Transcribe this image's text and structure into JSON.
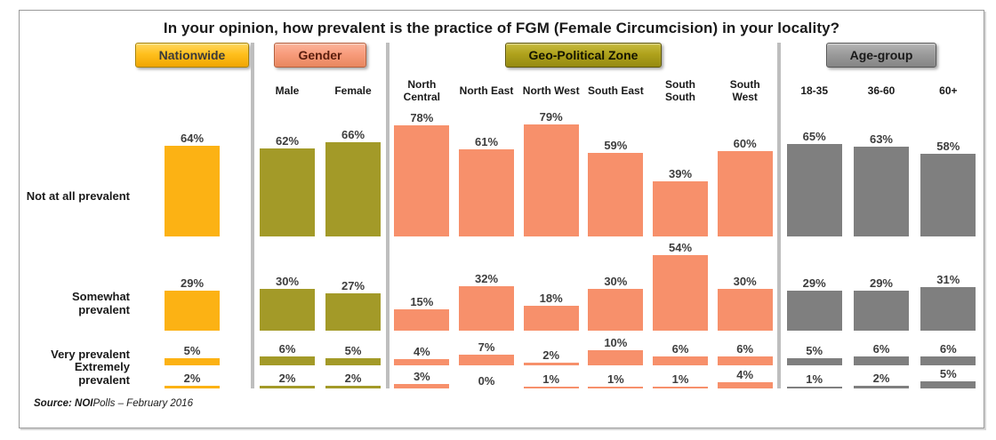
{
  "title": "In your opinion, how prevalent is the practice of FGM (Female Circumcision) in your locality?",
  "source": {
    "bold": "Source: NOI",
    "rest": "Polls – February 2016"
  },
  "chart_data": {
    "type": "bar",
    "title": "In your opinion, how prevalent is the practice of FGM (Female Circumcision) in your locality?",
    "value_suffix": "%",
    "ylim": [
      0,
      100
    ],
    "grid": false,
    "legend_position": "none",
    "categories": [
      "Not at all prevalent",
      "Somewhat prevalent",
      "Very prevalent",
      "Extremely prevalent"
    ],
    "groups": [
      {
        "name": "Nationwide",
        "bar_color": "#FCB214",
        "header_bg_top": "#FFD75E",
        "header_bg": "#FFC01E",
        "header_bg_bottom": "#F0A500",
        "header_border": "#A98200",
        "header_text_color": "#3A3A3A",
        "columns": [
          {
            "label": "",
            "values": [
              64,
              29,
              5,
              2
            ]
          }
        ]
      },
      {
        "name": "Gender",
        "bar_color": "#A39A28",
        "header_bg_top": "#FBB49B",
        "header_bg": "#F89C7C",
        "header_bg_bottom": "#E8875F",
        "header_border": "#B55F3C",
        "header_text_color": "#5A1D0D",
        "columns": [
          {
            "label": "Male",
            "values": [
              62,
              30,
              6,
              2
            ]
          },
          {
            "label": "Female",
            "values": [
              66,
              27,
              5,
              2
            ]
          }
        ]
      },
      {
        "name": "Geo-Political Zone",
        "bar_color": "#F7906B",
        "header_bg_top": "#C8BC3F",
        "header_bg": "#AFA21C",
        "header_bg_bottom": "#958A10",
        "header_border": "#5F570A",
        "header_text_color": "#141400",
        "columns": [
          {
            "label": "North Central",
            "values": [
              78,
              15,
              4,
              3
            ]
          },
          {
            "label": "North East",
            "values": [
              61,
              32,
              7,
              0
            ]
          },
          {
            "label": "North West",
            "values": [
              79,
              18,
              2,
              1
            ]
          },
          {
            "label": "South East",
            "values": [
              59,
              30,
              10,
              1
            ]
          },
          {
            "label": "South South",
            "values": [
              39,
              54,
              6,
              1
            ]
          },
          {
            "label": "South West",
            "values": [
              60,
              30,
              6,
              4
            ]
          }
        ]
      },
      {
        "name": "Age-group",
        "bar_color": "#7F7F7F",
        "header_bg_top": "#B5B5B5",
        "header_bg": "#9B9B9B",
        "header_bg_bottom": "#858585",
        "header_border": "#565656",
        "header_text_color": "#1A1A1A",
        "columns": [
          {
            "label": "18-35",
            "values": [
              65,
              29,
              5,
              1
            ]
          },
          {
            "label": "36-60",
            "values": [
              63,
              29,
              6,
              2
            ]
          },
          {
            "label": "60+",
            "values": [
              58,
              31,
              6,
              5
            ]
          }
        ]
      }
    ]
  }
}
